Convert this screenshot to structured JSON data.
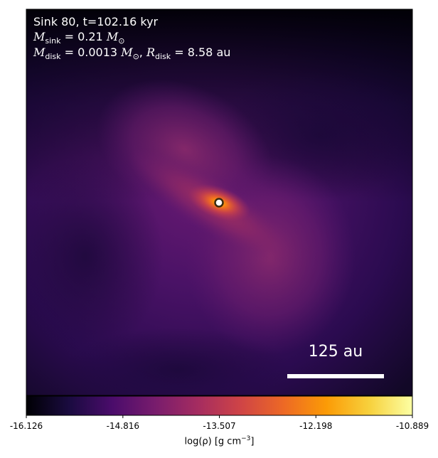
{
  "chart_data": {
    "type": "heatmap",
    "title": "",
    "xlabel": "",
    "ylabel": "",
    "annotations": {
      "line1": "Sink 80, t=102.16 kyr",
      "sink_mass": "0.21",
      "disk_mass": "0.0013",
      "disk_radius": "8.58",
      "unit_mass": "M",
      "unit_length": "au"
    },
    "scale_bar": {
      "length": 125,
      "label": "125 au"
    },
    "colorbar": {
      "label": "log(ρ) [g cm",
      "label_exponent": "−3",
      "label_close": "]",
      "colormap": "inferno-like",
      "vmin": -16.126,
      "vmax": -10.889,
      "ticks": [
        "-16.126",
        "-14.816",
        "-13.507",
        "-12.198",
        "-10.889"
      ]
    },
    "colors": {
      "c0": "#000004",
      "c1": "#1a0b40",
      "c2": "#4a0c6b",
      "c3": "#781c6d",
      "c4": "#a52c60",
      "c5": "#cf4446",
      "c6": "#ed6925",
      "c7": "#fb9b06",
      "c8": "#f7d13d",
      "c9": "#fcffa4"
    }
  }
}
